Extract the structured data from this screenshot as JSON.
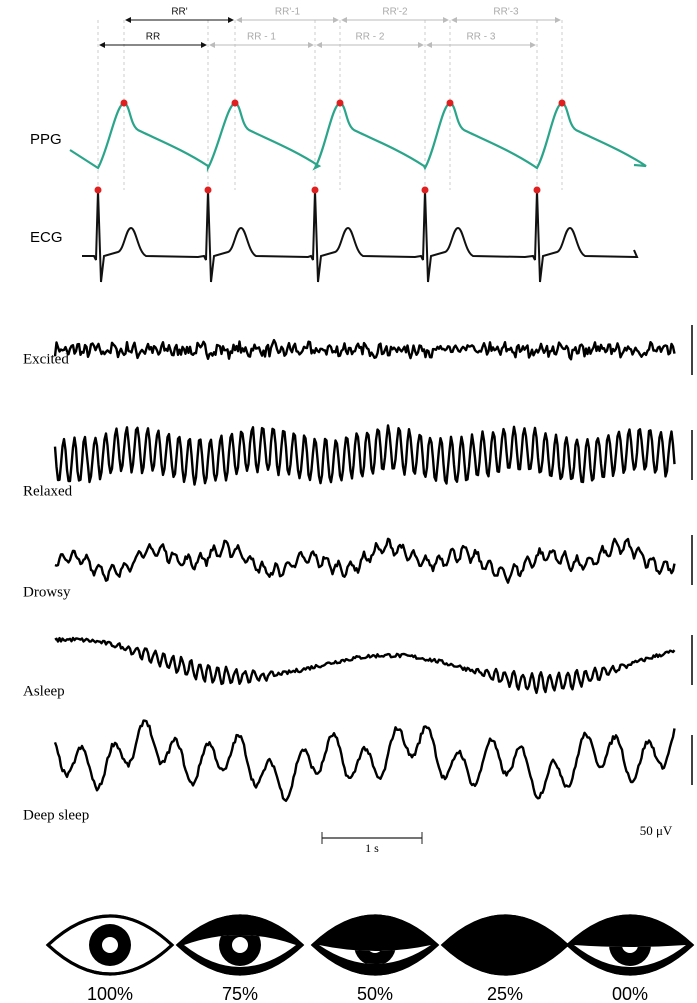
{
  "ppg_ecg": {
    "rr_prime_labels": [
      "RR'",
      "RR'-1",
      "RR'-2",
      "RR'-3"
    ],
    "rr_labels": [
      "RR",
      "RR - 1",
      "RR - 2",
      "RR - 3"
    ],
    "signals": [
      "PPG",
      "ECG"
    ]
  },
  "eeg": {
    "states": [
      "Excited",
      "Relaxed",
      "Drowsy",
      "Asleep",
      "Deep sleep"
    ],
    "time_scale": "1 s",
    "amplitude_scale": "50 μV"
  },
  "eye_openness": {
    "labels": [
      "100%",
      "75%",
      "50%",
      "25%",
      "00%"
    ]
  }
}
